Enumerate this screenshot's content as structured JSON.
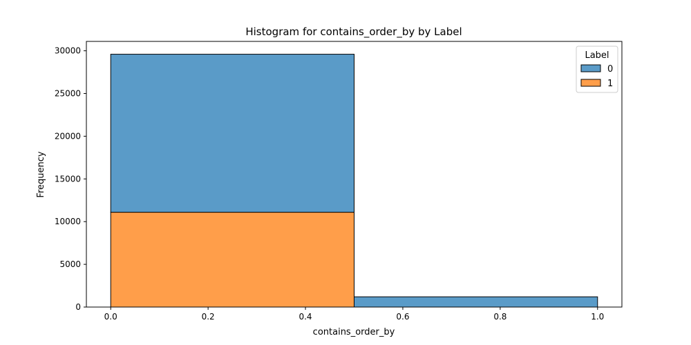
{
  "chart_data": {
    "type": "bar",
    "title": "Histogram for contains_order_by by Label",
    "xlabel": "contains_order_by",
    "ylabel": "Frequency",
    "xlim": [
      -0.05,
      1.05
    ],
    "ylim": [
      0,
      31100
    ],
    "x_ticks": [
      "0.0",
      "0.2",
      "0.4",
      "0.6",
      "0.8",
      "1.0"
    ],
    "y_ticks": [
      "0",
      "5000",
      "10000",
      "15000",
      "20000",
      "25000",
      "30000"
    ],
    "bins": [
      {
        "x0": 0.0,
        "x1": 0.5
      },
      {
        "x0": 0.5,
        "x1": 1.0
      }
    ],
    "series": [
      {
        "name": "1",
        "color": "#ff9e4a",
        "values": [
          11100,
          0
        ]
      },
      {
        "name": "0",
        "color": "#5a9bc8",
        "values": [
          18500,
          1200
        ]
      }
    ],
    "stacking": "stacked",
    "legend": {
      "title": "Label",
      "entries": [
        {
          "label": "0",
          "color": "#5a9bc8"
        },
        {
          "label": "1",
          "color": "#ff9e4a"
        }
      ],
      "placement": "top-right"
    },
    "grid": false
  }
}
